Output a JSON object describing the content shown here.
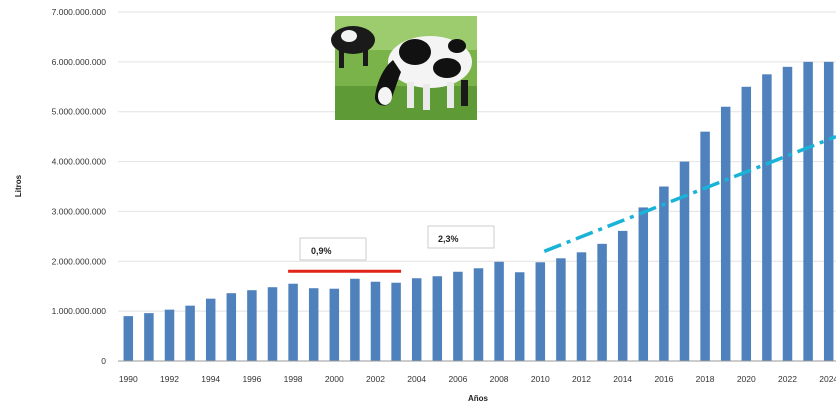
{
  "chart_data": {
    "type": "bar",
    "xlabel": "Años",
    "ylabel": "Litros",
    "ylim": [
      0,
      7000000000
    ],
    "y_ticks": [
      0,
      1000000000,
      2000000000,
      3000000000,
      4000000000,
      5000000000,
      6000000000,
      7000000000
    ],
    "y_tick_labels": [
      "0",
      "1.000.000.000",
      "2.000.000.000",
      "3.000.000.000",
      "4.000.000.000",
      "5.000.000.000",
      "6.000.000.000",
      "7.000.000.000"
    ],
    "grid": true,
    "bar_color": "#4f81bd",
    "categories": [
      "1990",
      "1991",
      "1992",
      "1993",
      "1994",
      "1995",
      "1996",
      "1997",
      "1998",
      "1999",
      "2000",
      "2001",
      "2002",
      "2003",
      "2004",
      "2005",
      "2006",
      "2007",
      "2008",
      "2009",
      "2010",
      "2011",
      "2012",
      "2013",
      "2014",
      "2015",
      "2016",
      "2017",
      "2018",
      "2019",
      "2020",
      "2021",
      "2022",
      "2023",
      "2024",
      "2025"
    ],
    "x_tick_labels": [
      "1990",
      "",
      "1992",
      "",
      "1994",
      "",
      "1996",
      "",
      "1998",
      "",
      "2000",
      "",
      "2002",
      "",
      "2004",
      "",
      "2006",
      "",
      "2008",
      "",
      "2010",
      "",
      "2012",
      "",
      "2014",
      "",
      "2016",
      "",
      "2018",
      "",
      "2020",
      "",
      "2022",
      "",
      "2024",
      ""
    ],
    "values": [
      900000000,
      960000000,
      1030000000,
      1110000000,
      1250000000,
      1360000000,
      1420000000,
      1480000000,
      1550000000,
      1460000000,
      1450000000,
      1650000000,
      1590000000,
      1570000000,
      1660000000,
      1700000000,
      1790000000,
      1860000000,
      1990000000,
      1780000000,
      1980000000,
      2060000000,
      2180000000,
      2350000000,
      2610000000,
      3080000000,
      3500000000,
      4000000000,
      4600000000,
      5100000000,
      5500000000,
      5750000000,
      5900000000,
      6000000000,
      6000000000,
      6000000000
    ],
    "annotations": [
      {
        "label": "0,9%",
        "trend": {
          "type": "solid",
          "color": "#e2231a",
          "x_start": "1998",
          "x_end": "2003",
          "y": 1800000000
        }
      },
      {
        "label": "2,3%",
        "trend": {
          "type": "dash-dot",
          "color": "#1ab3d8",
          "x_start": "2010",
          "x_end": "2025",
          "y_start": 2200000000,
          "y_end": 4500000000
        }
      }
    ],
    "image": {
      "subject": "cow-photo"
    }
  }
}
